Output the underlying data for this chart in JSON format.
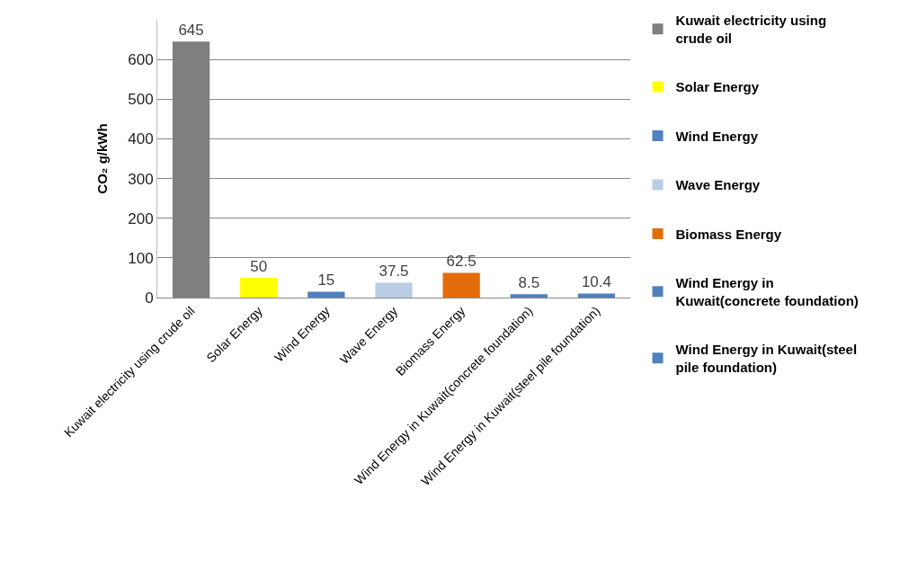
{
  "chart_data": {
    "type": "bar",
    "ylabel": "CO₂ g/kWh",
    "categories": [
      "Kuwait electricity using crude oil",
      "Solar Energy",
      "Wind Energy",
      "Wave Energy",
      "Biomass Energy",
      "Wind Energy in Kuwait(concrete foundation)",
      "Wind Energy in Kuwait(steel pile foundation)"
    ],
    "series": [
      {
        "name": "Kuwait electricity using crude oil",
        "color": "#7f7f7f",
        "values": [
          645,
          null,
          null,
          null,
          null,
          null,
          null
        ]
      },
      {
        "name": "Solar Energy",
        "color": "#ffff00",
        "values": [
          null,
          50,
          null,
          null,
          null,
          null,
          null
        ]
      },
      {
        "name": "Wind Energy",
        "color": "#4f81bd",
        "values": [
          null,
          null,
          15,
          null,
          null,
          null,
          null
        ]
      },
      {
        "name": "Wave Energy",
        "color": "#b9cde5",
        "values": [
          null,
          null,
          null,
          37.5,
          null,
          null,
          null
        ]
      },
      {
        "name": "Biomass Energy",
        "color": "#e46c0a",
        "values": [
          null,
          null,
          null,
          null,
          62.5,
          null,
          null
        ]
      },
      {
        "name": "Wind Energy in Kuwait(concrete foundation)",
        "color": "#4f81bd",
        "values": [
          null,
          null,
          null,
          null,
          null,
          8.5,
          null
        ]
      },
      {
        "name": "Wind Energy in Kuwait(steel pile foundation)",
        "color": "#4f81bd",
        "values": [
          null,
          null,
          null,
          null,
          null,
          null,
          10.4
        ]
      }
    ],
    "ylim": [
      0,
      700
    ],
    "yticks": [
      0,
      100,
      200,
      300,
      400,
      500,
      600
    ],
    "grid": "y",
    "legend": "right",
    "data_labels": true
  }
}
